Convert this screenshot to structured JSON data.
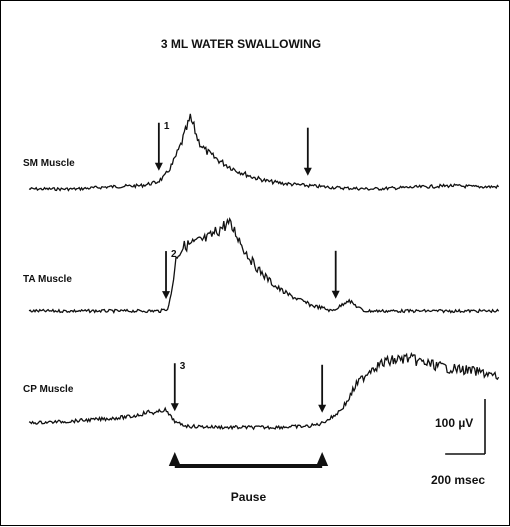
{
  "chart_data": {
    "type": "line",
    "title": "3 ML WATER SWALLOWING",
    "x_unit": "ms",
    "y_unit": "µV",
    "series": [
      {
        "name": "SM Muscle",
        "points": [
          [
            0,
            0
          ],
          [
            120,
            0
          ],
          [
            200,
            4
          ],
          [
            280,
            6
          ],
          [
            320,
            12
          ],
          [
            340,
            22
          ],
          [
            360,
            45
          ],
          [
            380,
            78
          ],
          [
            395,
            108
          ],
          [
            405,
            128
          ],
          [
            415,
            110
          ],
          [
            425,
            88
          ],
          [
            440,
            72
          ],
          [
            460,
            60
          ],
          [
            490,
            46
          ],
          [
            520,
            34
          ],
          [
            560,
            22
          ],
          [
            600,
            14
          ],
          [
            640,
            10
          ],
          [
            700,
            6
          ],
          [
            780,
            2
          ],
          [
            860,
            0
          ],
          [
            960,
            3
          ],
          [
            1060,
            6
          ],
          [
            1120,
            4
          ],
          [
            1180,
            4
          ]
        ]
      },
      {
        "name": "TA Muscle",
        "points": [
          [
            0,
            0
          ],
          [
            150,
            0
          ],
          [
            300,
            0
          ],
          [
            330,
            0
          ],
          [
            350,
            5
          ],
          [
            360,
            45
          ],
          [
            370,
            100
          ],
          [
            390,
            118
          ],
          [
            420,
            125
          ],
          [
            450,
            132
          ],
          [
            480,
            150
          ],
          [
            500,
            160
          ],
          [
            520,
            142
          ],
          [
            540,
            112
          ],
          [
            560,
            90
          ],
          [
            580,
            72
          ],
          [
            600,
            58
          ],
          [
            620,
            44
          ],
          [
            650,
            30
          ],
          [
            680,
            20
          ],
          [
            710,
            10
          ],
          [
            740,
            5
          ],
          [
            760,
            0
          ],
          [
            780,
            8
          ],
          [
            800,
            20
          ],
          [
            820,
            10
          ],
          [
            840,
            0
          ],
          [
            900,
            0
          ],
          [
            1180,
            0
          ]
        ]
      },
      {
        "name": "CP Muscle",
        "points": [
          [
            0,
            0
          ],
          [
            100,
            3
          ],
          [
            200,
            8
          ],
          [
            260,
            12
          ],
          [
            300,
            20
          ],
          [
            320,
            18
          ],
          [
            340,
            25
          ],
          [
            355,
            12
          ],
          [
            370,
            0
          ],
          [
            400,
            -6
          ],
          [
            500,
            -8
          ],
          [
            600,
            -8
          ],
          [
            700,
            -6
          ],
          [
            730,
            -2
          ],
          [
            760,
            10
          ],
          [
            780,
            22
          ],
          [
            800,
            40
          ],
          [
            820,
            68
          ],
          [
            860,
            100
          ],
          [
            900,
            112
          ],
          [
            950,
            118
          ],
          [
            1000,
            108
          ],
          [
            1050,
            100
          ],
          [
            1100,
            96
          ],
          [
            1150,
            90
          ],
          [
            1180,
            82
          ]
        ]
      }
    ],
    "markers": [
      {
        "label": "1",
        "series": "SM Muscle",
        "x": 326
      },
      {
        "label": "",
        "series": "SM Muscle",
        "x": 700
      },
      {
        "label": "2",
        "series": "TA Muscle",
        "x": 344
      },
      {
        "label": "",
        "series": "TA Muscle",
        "x": 770
      },
      {
        "label": "3",
        "series": "CP Muscle",
        "x": 366
      },
      {
        "label": "",
        "series": "CP Muscle",
        "x": 736
      }
    ],
    "pause": {
      "label": "Pause",
      "start": 366,
      "end": 736
    },
    "scale_bar": {
      "amplitude_label": "100 µV",
      "amplitude": 100,
      "time_label": "200 msec",
      "time": 200
    }
  }
}
